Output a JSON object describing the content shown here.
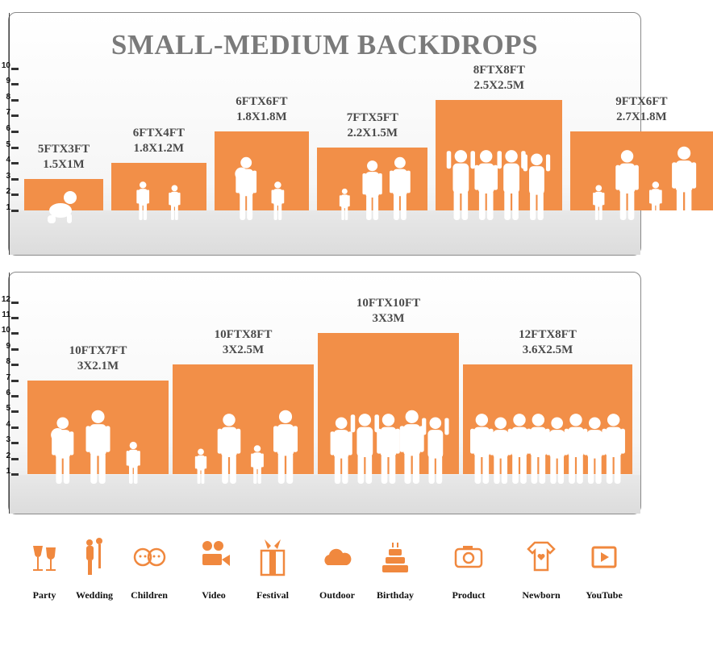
{
  "title": "SMALL-MEDIUM BACKDROPS",
  "accent_color": "#f28f48",
  "panels": [
    {
      "ticks": [
        1,
        2,
        3,
        4,
        5,
        6,
        7,
        8,
        9,
        10
      ],
      "items": [
        {
          "label_ft": "5FTX3FT",
          "label_m": "1.5X1M",
          "width_ft": 5,
          "height_ft": 3
        },
        {
          "label_ft": "6FTX4FT",
          "label_m": "1.8X1.2M",
          "width_ft": 6,
          "height_ft": 4
        },
        {
          "label_ft": "6FTX6FT",
          "label_m": "1.8X1.8M",
          "width_ft": 6,
          "height_ft": 6
        },
        {
          "label_ft": "7FTX5FT",
          "label_m": "2.2X1.5M",
          "width_ft": 7,
          "height_ft": 5
        },
        {
          "label_ft": "8FTX8FT",
          "label_m": "2.5X2.5M",
          "width_ft": 8,
          "height_ft": 8
        },
        {
          "label_ft": "9FTX6FT",
          "label_m": "2.7X1.8M",
          "width_ft": 9,
          "height_ft": 6
        }
      ]
    },
    {
      "ticks": [
        1,
        2,
        3,
        4,
        5,
        6,
        7,
        8,
        9,
        10,
        11,
        12
      ],
      "items": [
        {
          "label_ft": "10FTX7FT",
          "label_m": "3X2.1M",
          "width_ft": 10,
          "height_ft": 7
        },
        {
          "label_ft": "10FTX8FT",
          "label_m": "3X2.5M",
          "width_ft": 10,
          "height_ft": 8
        },
        {
          "label_ft": "10FTX10FT",
          "label_m": "3X3M",
          "width_ft": 10,
          "height_ft": 10
        },
        {
          "label_ft": "12FTX8FT",
          "label_m": "3.6X2.5M",
          "width_ft": 12,
          "height_ft": 8
        }
      ]
    }
  ],
  "uses": [
    {
      "label": "Party",
      "icon": "wine-glasses-icon"
    },
    {
      "label": "Wedding",
      "icon": "wedding-couple-icon"
    },
    {
      "label": "Children",
      "icon": "children-faces-icon"
    },
    {
      "label": "Video",
      "icon": "movie-camera-icon"
    },
    {
      "label": "Festival",
      "icon": "gift-box-icon"
    },
    {
      "label": "Outdoor",
      "icon": "cloud-icon"
    },
    {
      "label": "Birthday",
      "icon": "birthday-cake-icon"
    },
    {
      "label": "Product",
      "icon": "camera-icon"
    },
    {
      "label": "Newborn",
      "icon": "baby-onesie-icon"
    },
    {
      "label": "YouTube",
      "icon": "play-button-icon"
    }
  ]
}
